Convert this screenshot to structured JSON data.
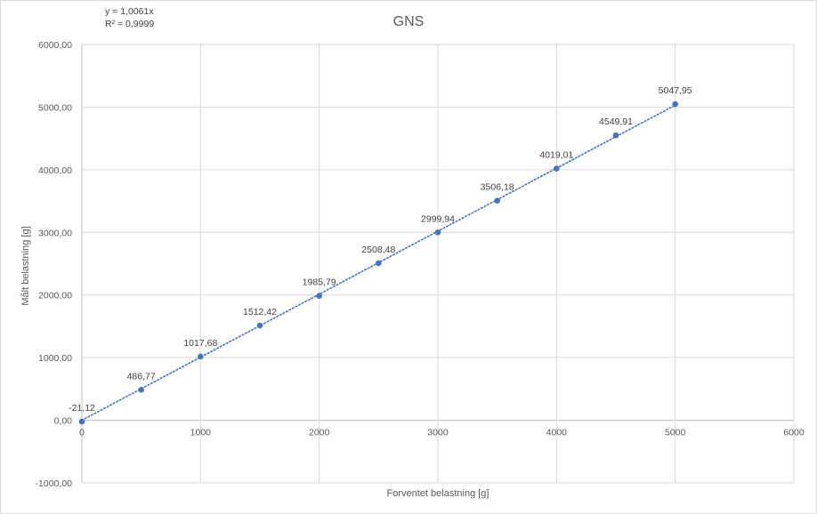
{
  "chart_data": {
    "type": "scatter",
    "title": "GNS",
    "xlabel": "Forventet belastning [g]",
    "ylabel": "Målt belastning [g]",
    "xlim": [
      0,
      6000
    ],
    "ylim": [
      -1000,
      6000
    ],
    "x_ticks": [
      "0",
      "1000",
      "2000",
      "3000",
      "4000",
      "5000",
      "6000"
    ],
    "y_ticks": [
      "-1000,00",
      "0,00",
      "1000,00",
      "2000,00",
      "3000,00",
      "4000,00",
      "5000,00",
      "6000,00"
    ],
    "grid": true,
    "series": [
      {
        "x": [
          0,
          500,
          1000,
          1500,
          2000,
          2500,
          3000,
          3500,
          4000,
          4500,
          5000
        ],
        "y": [
          -21.12,
          486.77,
          1017.68,
          1512.42,
          1985.79,
          2508.48,
          2999.94,
          3506.18,
          4019.01,
          4549.91,
          5047.95
        ],
        "labels": [
          "-21,12",
          "486,77",
          "1017,68",
          "1512,42",
          "1985,79",
          "2508,48",
          "2999,94",
          "3506,18",
          "4019,01",
          "4549,91",
          "5047,95"
        ],
        "color": "#4472c4"
      }
    ],
    "trendline": {
      "type": "linear",
      "slope": 1.0061,
      "equation": "y = 1,0061x",
      "r_squared": "R² = 0,9999",
      "style": "dotted",
      "color": "#4472c4"
    }
  }
}
